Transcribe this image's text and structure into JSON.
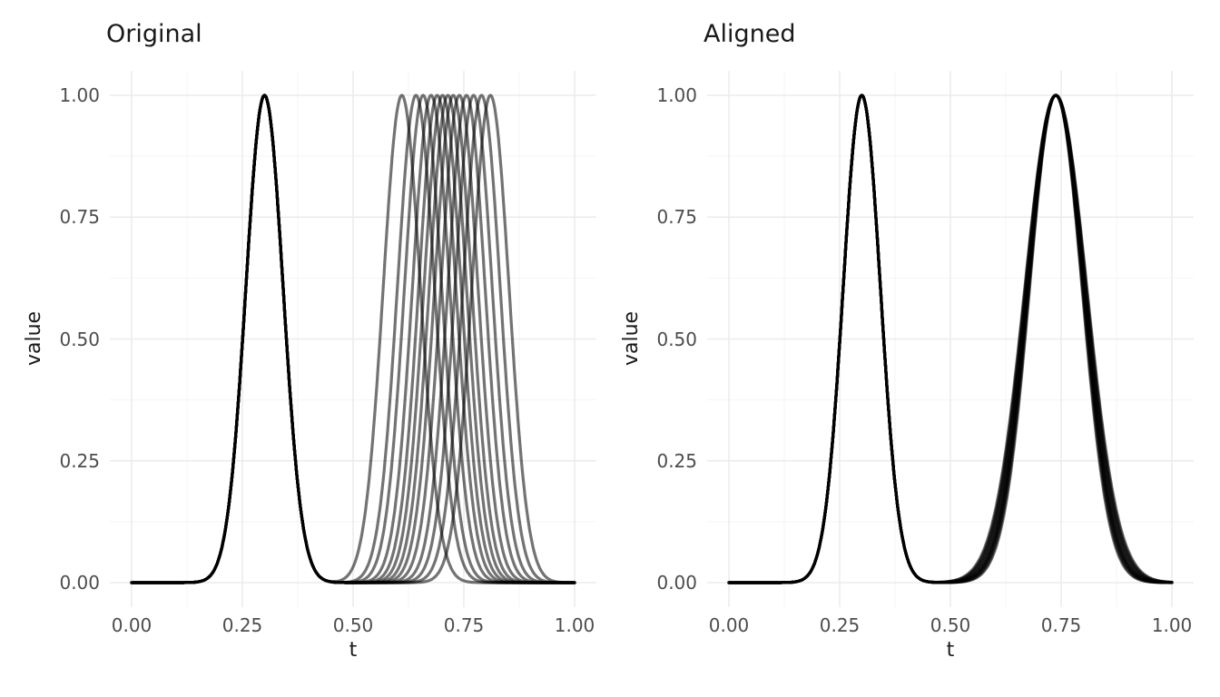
{
  "figure": {
    "background": "#FFFFFF",
    "grid_major_color": "#EBEBEB",
    "grid_minor_color": "#F4F4F4",
    "curve_color": "#000000",
    "curve_alpha": 0.55,
    "tick_label_color": "#4D4D4D",
    "title_color": "#1A1A1A"
  },
  "chart_data": [
    {
      "type": "line",
      "title": "Original",
      "xlabel": "t",
      "ylabel": "value",
      "xlim": [
        0,
        1
      ],
      "ylim": [
        0,
        1
      ],
      "xticks": [
        "0.00",
        "0.25",
        "0.50",
        "0.75",
        "1.00"
      ],
      "yticks": [
        "0.00",
        "0.25",
        "0.50",
        "0.75",
        "1.00"
      ],
      "grid": "major and minor, light gray, no panel border, no axis ticks",
      "legend": "none",
      "n_curves": 13,
      "description": "13 semi-transparent black curves; each is a sum of two Gaussian bumps of height 1.0. First bump identical for all curves (center 0.30); second bump center varies per curve between ~0.61 and ~0.81, so the curves overlap exactly on the first bump (solid black) and fan out on the second.",
      "bump1": {
        "center": 0.3,
        "sd": 0.042,
        "height": 1.0
      },
      "bump2_sd": 0.042,
      "bump2_height": 1.0,
      "bump2_centers": [
        0.61,
        0.642,
        0.658,
        0.676,
        0.69,
        0.702,
        0.714,
        0.726,
        0.74,
        0.756,
        0.772,
        0.79,
        0.81
      ]
    },
    {
      "type": "line",
      "title": "Aligned",
      "xlabel": "t",
      "ylabel": "value",
      "xlim": [
        0,
        1
      ],
      "ylim": [
        0,
        1
      ],
      "xticks": [
        "0.00",
        "0.25",
        "0.50",
        "0.75",
        "1.00"
      ],
      "yticks": [
        "0.00",
        "0.25",
        "0.50",
        "0.75",
        "1.00"
      ],
      "grid": "major and minor, light gray, no panel border, no axis ticks",
      "legend": "none",
      "n_curves": 13,
      "description": "Same 13 curves after alignment: first bump at t=0.30 and second bump now aligned at t≈0.74 for every curve; the second bump is wider than the first, and slight width differences make the aligned bump look like one thick black curve.",
      "bump1": {
        "center": 0.3,
        "sd": 0.042,
        "height": 1.0
      },
      "bump2_center": 0.738,
      "bump2_height": 1.0,
      "bump2_sds": [
        0.059,
        0.06,
        0.061,
        0.062,
        0.0625,
        0.063,
        0.064,
        0.065,
        0.066,
        0.067,
        0.068,
        0.069,
        0.07
      ]
    }
  ]
}
